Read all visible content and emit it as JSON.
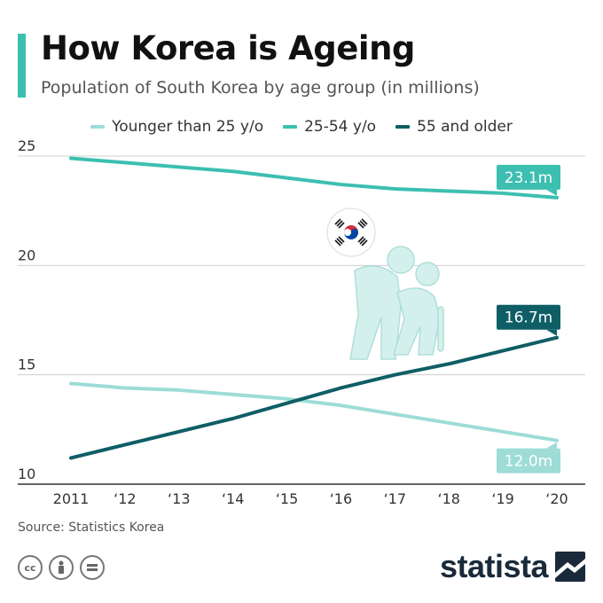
{
  "header": {
    "title": "How Korea is Ageing",
    "subtitle": "Population of South Korea by age group (in millions)"
  },
  "legend": [
    {
      "label": "Younger than 25 y/o",
      "color": "#9ddcd7"
    },
    {
      "label": "25-54 y/o",
      "color": "#3cbfb1"
    },
    {
      "label": "55 and older",
      "color": "#0f5e66"
    }
  ],
  "chart_data": {
    "type": "line",
    "x": [
      "2011",
      "‘12",
      "‘13",
      "‘14",
      "‘15",
      "‘16",
      "‘17",
      "‘18",
      "‘19",
      "‘20"
    ],
    "ylim": [
      10,
      25
    ],
    "yticks": [
      10,
      15,
      20,
      25
    ],
    "grid": true,
    "legend_position": "top",
    "series": [
      {
        "name": "Younger than 25 y/o",
        "color": "#9ddcd7",
        "values": [
          14.6,
          14.4,
          14.3,
          14.1,
          13.9,
          13.6,
          13.2,
          12.8,
          12.4,
          12.0
        ],
        "end_label": "12.0m"
      },
      {
        "name": "25-54 y/o",
        "color": "#3cbfb1",
        "values": [
          24.9,
          24.7,
          24.5,
          24.3,
          24.0,
          23.7,
          23.5,
          23.4,
          23.3,
          23.1
        ],
        "end_label": "23.1m"
      },
      {
        "name": "55 and older",
        "color": "#0f5e66",
        "values": [
          11.2,
          11.8,
          12.4,
          13.0,
          13.7,
          14.4,
          15.0,
          15.5,
          16.1,
          16.7
        ],
        "end_label": "16.7m"
      }
    ]
  },
  "illustration": {
    "flag_icon": "south-korea-flag-icon",
    "figure_icon": "elderly-couple-icon"
  },
  "footer": {
    "source": "Source: Statistics Korea",
    "license_icons": [
      "cc-icon",
      "attribution-icon",
      "no-derivatives-icon"
    ],
    "brand": "statista"
  }
}
